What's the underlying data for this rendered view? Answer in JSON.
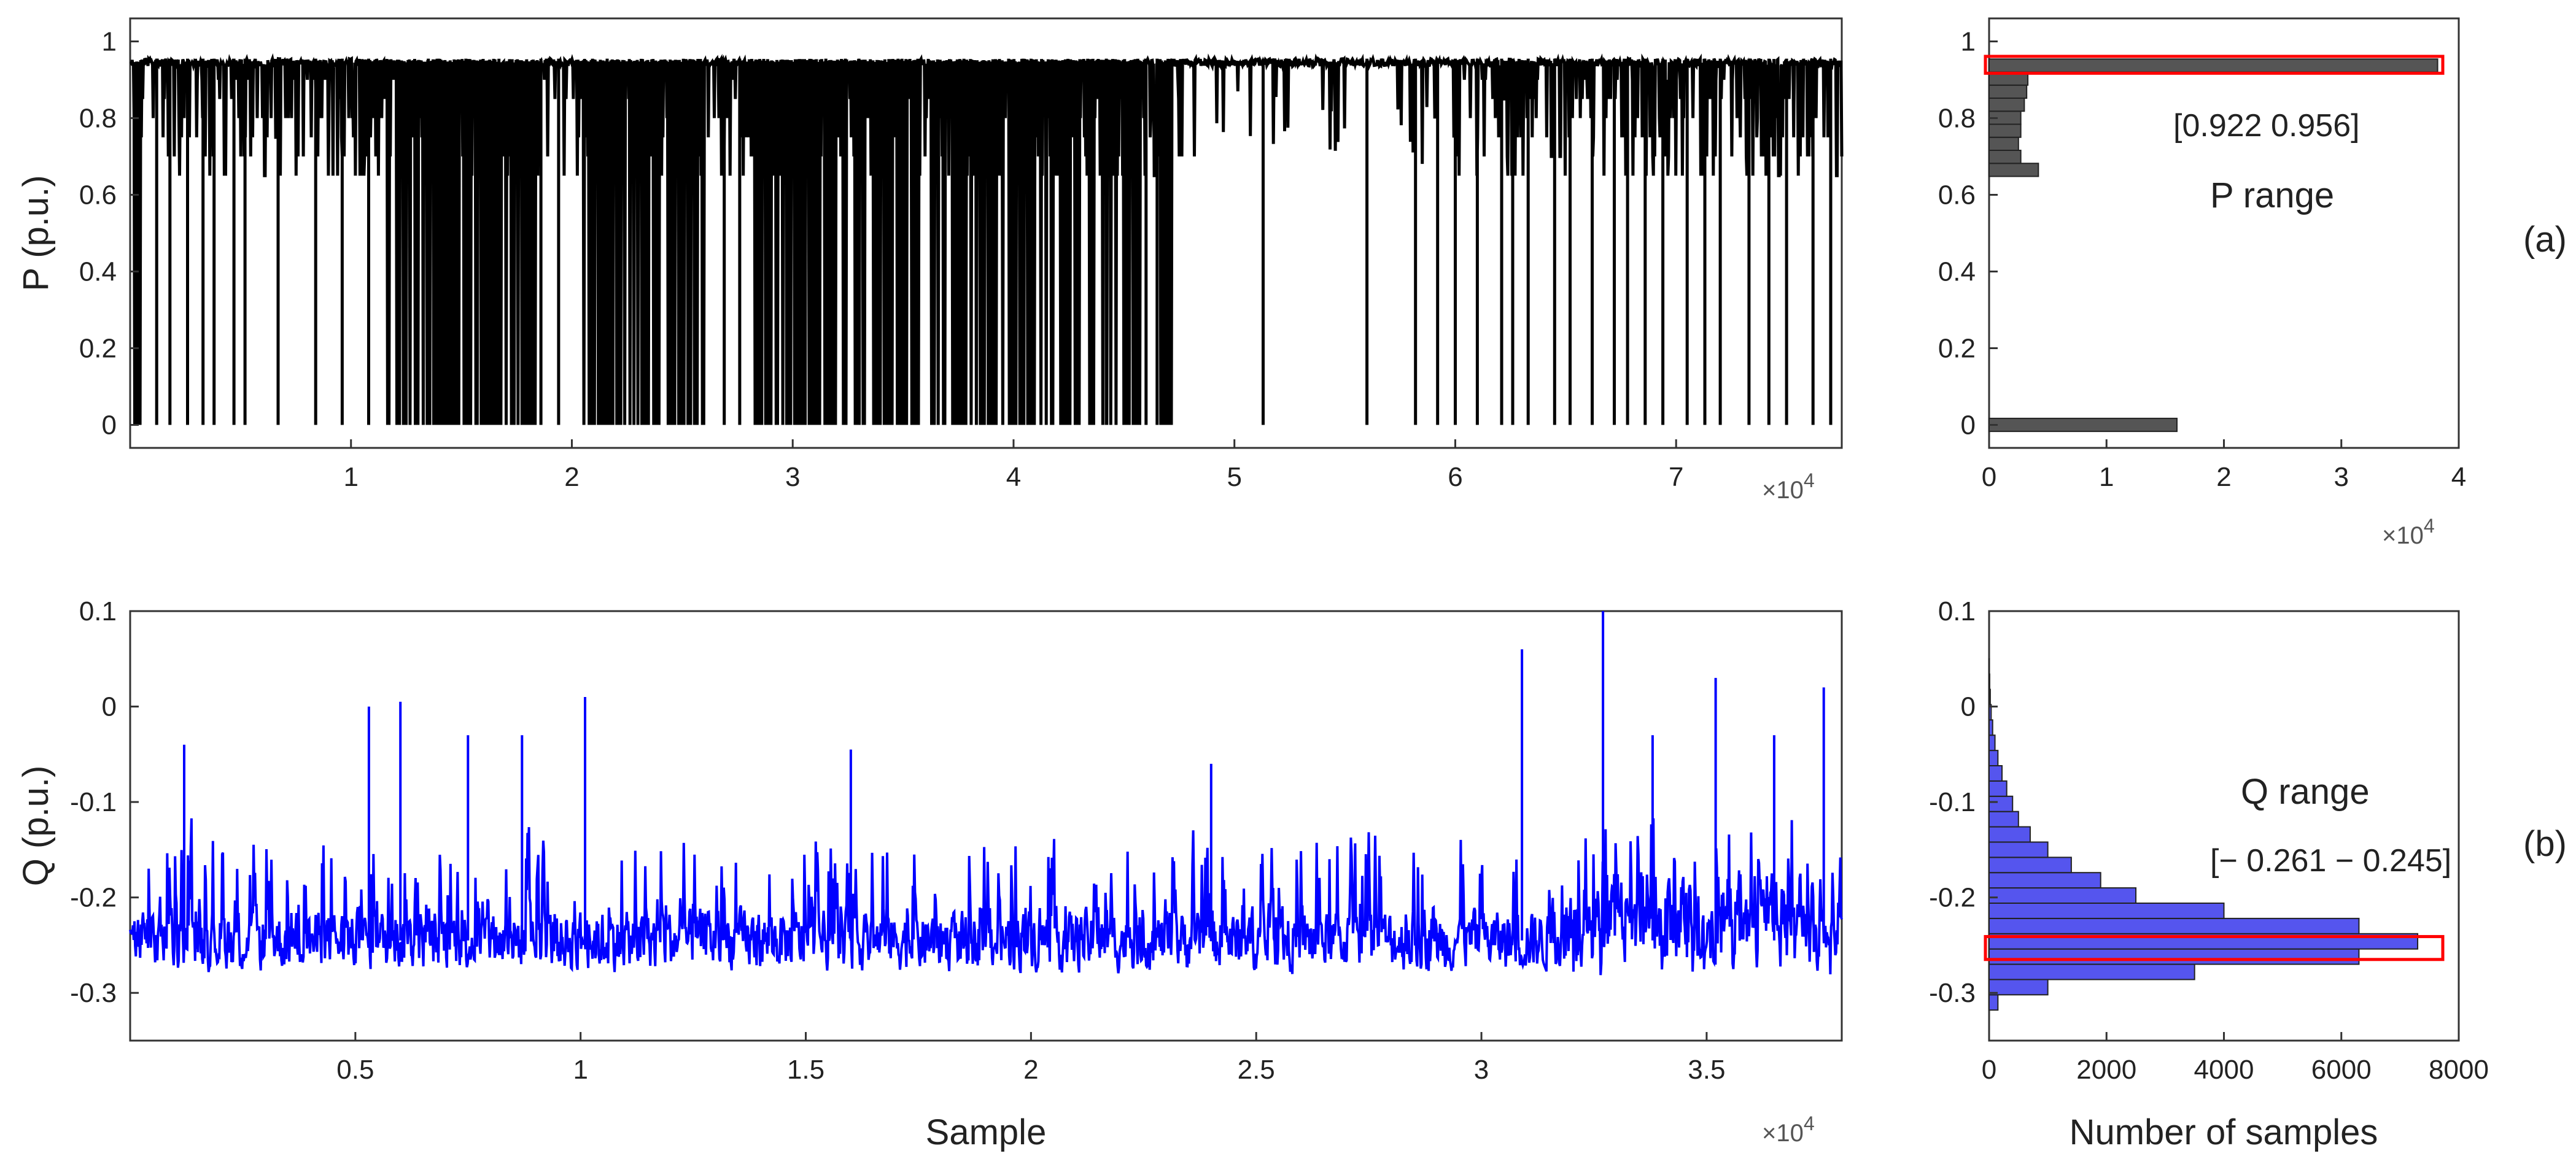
{
  "chart_data": [
    {
      "id": "p-timeseries",
      "type": "line",
      "color": "#000000",
      "ylabel": "P (p.u.)",
      "xlabel": "",
      "x_exponent_label": "×10",
      "x_exponent": "4",
      "xlim": [
        0,
        7.75
      ],
      "ylim": [
        -0.06,
        1.06
      ],
      "xticks": [
        1,
        2,
        3,
        4,
        5,
        6,
        7
      ],
      "xtick_labels": [
        "1",
        "2",
        "3",
        "4",
        "5",
        "6",
        "7"
      ],
      "yticks": [
        0,
        0.2,
        0.4,
        0.6,
        0.8,
        1
      ],
      "ytick_labels": [
        "0",
        "0.2",
        "0.4",
        "0.6",
        "0.8",
        "1"
      ],
      "dense_spans": [
        [
          0.02,
          0.06
        ],
        [
          1.16,
          1.18
        ],
        [
          1.2,
          1.68
        ],
        [
          1.7,
          1.85
        ],
        [
          2.05,
          2.6
        ],
        [
          2.8,
          3.58
        ],
        [
          3.62,
          4.6
        ],
        [
          4.66,
          4.72
        ]
      ],
      "spikes_to_zero": [
        0.12,
        0.18,
        0.26,
        0.33,
        0.38,
        0.47,
        0.52,
        0.67,
        0.84,
        0.96,
        1.08,
        1.35,
        1.52,
        1.86,
        1.94,
        2.16,
        2.69,
        2.76,
        3.15,
        3.3,
        4.42,
        4.6,
        4.65,
        5.13,
        5.6,
        5.82,
        5.92,
        6.0,
        6.1,
        6.21,
        6.26,
        6.33,
        6.45,
        6.52,
        6.62,
        6.72,
        6.78,
        6.86,
        6.94,
        7.05,
        7.13,
        7.2,
        7.33,
        7.42,
        7.5,
        7.62,
        7.7
      ],
      "quiet_span": [
        4.85,
        6.0
      ],
      "upper_level": 0.955,
      "lower_levels": [
        0.65,
        0.7,
        0.75,
        0.8,
        0.85,
        0.9
      ]
    },
    {
      "id": "p-histogram",
      "type": "bar",
      "orientation": "horizontal",
      "color": "#555555",
      "x_exponent_label": "×10",
      "x_exponent": "4",
      "xlim": [
        0,
        4
      ],
      "ylim": [
        -0.06,
        1.06
      ],
      "xticks": [
        0,
        1,
        2,
        3,
        4
      ],
      "xtick_labels": [
        "0",
        "1",
        "2",
        "3",
        "4"
      ],
      "yticks": [
        0,
        0.2,
        0.4,
        0.6,
        0.8,
        1
      ],
      "ytick_labels": [
        "0",
        "0.2",
        "0.4",
        "0.6",
        "0.8",
        "1"
      ],
      "bin_height": 0.034,
      "bins": [
        {
          "y": 0.0,
          "count": 1.6
        },
        {
          "y": 0.665,
          "count": 0.42
        },
        {
          "y": 0.699,
          "count": 0.27
        },
        {
          "y": 0.733,
          "count": 0.25
        },
        {
          "y": 0.767,
          "count": 0.27
        },
        {
          "y": 0.801,
          "count": 0.27
        },
        {
          "y": 0.835,
          "count": 0.3
        },
        {
          "y": 0.869,
          "count": 0.32
        },
        {
          "y": 0.903,
          "count": 0.33
        },
        {
          "y": 0.937,
          "count": 3.82
        }
      ],
      "highlight": {
        "y_range": [
          0.922,
          0.956
        ],
        "color": "#ff0000"
      },
      "range_text": "[0.922 0.956]",
      "annotation": "P range",
      "panel_label": "(a)"
    },
    {
      "id": "q-timeseries",
      "type": "line",
      "color": "#0000ff",
      "ylabel": "Q (p.u.)",
      "xlabel": "Sample",
      "x_exponent_label": "×10",
      "x_exponent": "4",
      "xlim": [
        0,
        3.8
      ],
      "ylim": [
        -0.35,
        0.1
      ],
      "xticks": [
        0.5,
        1,
        1.5,
        2,
        2.5,
        3,
        3.5
      ],
      "xtick_labels": [
        "0.5",
        "1",
        "1.5",
        "2",
        "2.5",
        "3",
        "3.5"
      ],
      "yticks": [
        -0.3,
        -0.2,
        -0.1,
        0,
        0.1
      ],
      "ytick_labels": [
        "-0.3",
        "-0.2",
        "-0.1",
        "0",
        "0.1"
      ],
      "base_level": -0.245,
      "peaks": [
        {
          "x": 0.12,
          "y": -0.04
        },
        {
          "x": 0.53,
          "y": 0.0
        },
        {
          "x": 0.6,
          "y": 0.005
        },
        {
          "x": 0.75,
          "y": -0.03
        },
        {
          "x": 0.87,
          "y": -0.03
        },
        {
          "x": 1.01,
          "y": 0.01
        },
        {
          "x": 1.6,
          "y": -0.045
        },
        {
          "x": 2.4,
          "y": -0.06
        },
        {
          "x": 3.09,
          "y": 0.06
        },
        {
          "x": 3.27,
          "y": 0.1
        },
        {
          "x": 3.38,
          "y": -0.03
        },
        {
          "x": 3.52,
          "y": 0.03
        },
        {
          "x": 3.65,
          "y": -0.03
        },
        {
          "x": 3.76,
          "y": 0.02
        }
      ],
      "min_value": -0.335
    },
    {
      "id": "q-histogram",
      "type": "bar",
      "orientation": "horizontal",
      "color": "#5555ee",
      "xlim": [
        0,
        8000
      ],
      "ylim": [
        -0.35,
        0.1
      ],
      "xticks": [
        0,
        2000,
        4000,
        6000,
        8000
      ],
      "xtick_labels": [
        "0",
        "2000",
        "4000",
        "6000",
        "8000"
      ],
      "xlabel": "Number of samples",
      "yticks": [
        -0.3,
        -0.2,
        -0.1,
        0,
        0.1
      ],
      "ytick_labels": [
        "-0.3",
        "-0.2",
        "-0.1",
        "0",
        "0.1"
      ],
      "bin_height": 0.016,
      "bins": [
        {
          "y": -0.31,
          "count": 150
        },
        {
          "y": -0.294,
          "count": 1000
        },
        {
          "y": -0.278,
          "count": 3500
        },
        {
          "y": -0.262,
          "count": 6300
        },
        {
          "y": -0.246,
          "count": 7300
        },
        {
          "y": -0.23,
          "count": 6300
        },
        {
          "y": -0.214,
          "count": 4000
        },
        {
          "y": -0.198,
          "count": 2500
        },
        {
          "y": -0.182,
          "count": 1900
        },
        {
          "y": -0.166,
          "count": 1400
        },
        {
          "y": -0.15,
          "count": 1000
        },
        {
          "y": -0.134,
          "count": 700
        },
        {
          "y": -0.118,
          "count": 500
        },
        {
          "y": -0.102,
          "count": 400
        },
        {
          "y": -0.086,
          "count": 300
        },
        {
          "y": -0.07,
          "count": 220
        },
        {
          "y": -0.054,
          "count": 150
        },
        {
          "y": -0.038,
          "count": 100
        },
        {
          "y": -0.022,
          "count": 60
        },
        {
          "y": -0.006,
          "count": 35
        },
        {
          "y": 0.01,
          "count": 20
        },
        {
          "y": 0.026,
          "count": 10
        },
        {
          "y": 0.042,
          "count": 5
        }
      ],
      "highlight": {
        "y_range": [
          -0.261,
          -0.245
        ],
        "color": "#ff0000"
      },
      "annotation": "Q range",
      "range_text": "[− 0.261 − 0.245]",
      "panel_label": "(b)"
    }
  ]
}
